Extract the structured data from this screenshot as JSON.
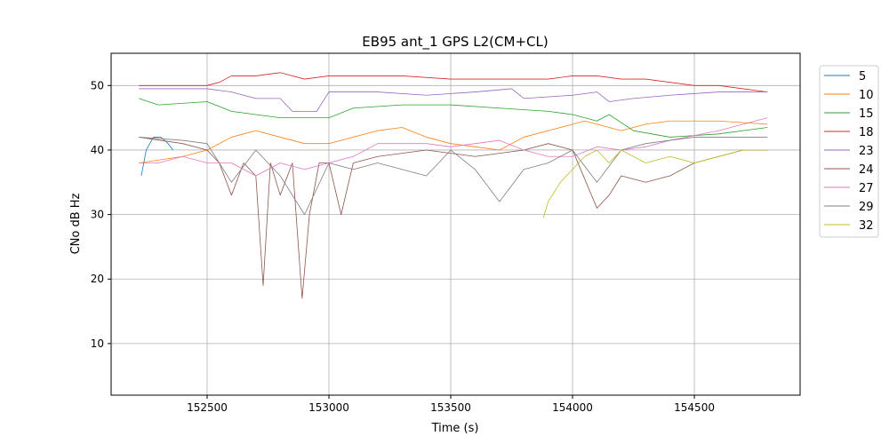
{
  "chart_data": {
    "type": "line",
    "title": "EB95 ant_1 GPS L2(CM+CL)",
    "xlabel": "Time (s)",
    "ylabel": "CNo dB Hz",
    "xlim": [
      152106,
      154934
    ],
    "ylim": [
      2,
      55
    ],
    "xticks": [
      152500,
      153000,
      153500,
      154000,
      154500
    ],
    "yticks": [
      10,
      20,
      30,
      40,
      50
    ],
    "grid": true,
    "legend_position": "outside-right-top",
    "series": [
      {
        "name": "5",
        "color": "#1f77b4",
        "points": [
          [
            152230,
            36
          ],
          [
            152250,
            40
          ],
          [
            152280,
            42
          ],
          [
            152310,
            42
          ],
          [
            152340,
            41
          ],
          [
            152360,
            40
          ]
        ]
      },
      {
        "name": "10",
        "color": "#ff7f0e",
        "points": [
          [
            152220,
            38
          ],
          [
            152400,
            39
          ],
          [
            152500,
            40
          ],
          [
            152600,
            42
          ],
          [
            152700,
            43
          ],
          [
            152800,
            42
          ],
          [
            152900,
            41
          ],
          [
            153000,
            41
          ],
          [
            153200,
            43
          ],
          [
            153300,
            43.5
          ],
          [
            153400,
            42
          ],
          [
            153500,
            41
          ],
          [
            153600,
            40.5
          ],
          [
            153700,
            40
          ],
          [
            153800,
            42
          ],
          [
            153900,
            43
          ],
          [
            154000,
            44
          ],
          [
            154050,
            44.5
          ],
          [
            154200,
            43
          ],
          [
            154300,
            44
          ],
          [
            154400,
            44.5
          ],
          [
            154600,
            44.5
          ],
          [
            154800,
            44
          ]
        ]
      },
      {
        "name": "15",
        "color": "#2ca02c",
        "points": [
          [
            152220,
            48
          ],
          [
            152300,
            47
          ],
          [
            152500,
            47.5
          ],
          [
            152600,
            46
          ],
          [
            152700,
            45.5
          ],
          [
            152800,
            45
          ],
          [
            153000,
            45
          ],
          [
            153100,
            46.5
          ],
          [
            153300,
            47
          ],
          [
            153500,
            47
          ],
          [
            153700,
            46.5
          ],
          [
            153900,
            46
          ],
          [
            154000,
            45.5
          ],
          [
            154100,
            44.5
          ],
          [
            154150,
            45.5
          ],
          [
            154250,
            43
          ],
          [
            154400,
            42
          ],
          [
            154600,
            42.5
          ],
          [
            154800,
            43.5
          ]
        ]
      },
      {
        "name": "18",
        "color": "#d62728",
        "points": [
          [
            152220,
            50
          ],
          [
            152400,
            50
          ],
          [
            152500,
            50
          ],
          [
            152550,
            50.5
          ],
          [
            152600,
            51.5
          ],
          [
            152700,
            51.5
          ],
          [
            152800,
            52
          ],
          [
            152900,
            51
          ],
          [
            153000,
            51.5
          ],
          [
            153100,
            51.5
          ],
          [
            153300,
            51.5
          ],
          [
            153500,
            51
          ],
          [
            153700,
            51
          ],
          [
            153900,
            51
          ],
          [
            154000,
            51.5
          ],
          [
            154100,
            51.5
          ],
          [
            154200,
            51
          ],
          [
            154300,
            51
          ],
          [
            154400,
            50.5
          ],
          [
            154500,
            50
          ],
          [
            154600,
            50
          ],
          [
            154700,
            49.5
          ],
          [
            154800,
            49
          ]
        ]
      },
      {
        "name": "23",
        "color": "#9467bd",
        "points": [
          [
            152220,
            49.5
          ],
          [
            152400,
            49.5
          ],
          [
            152500,
            49.5
          ],
          [
            152600,
            49
          ],
          [
            152700,
            48
          ],
          [
            152800,
            48
          ],
          [
            152850,
            46
          ],
          [
            152950,
            46
          ],
          [
            153000,
            49
          ],
          [
            153200,
            49
          ],
          [
            153400,
            48.5
          ],
          [
            153600,
            49
          ],
          [
            153750,
            49.5
          ],
          [
            153800,
            48
          ],
          [
            154000,
            48.5
          ],
          [
            154100,
            49
          ],
          [
            154150,
            47.5
          ],
          [
            154250,
            48
          ],
          [
            154400,
            48.5
          ],
          [
            154600,
            49
          ],
          [
            154800,
            49
          ]
        ]
      },
      {
        "name": "24",
        "color": "#8c564b",
        "points": [
          [
            152220,
            42
          ],
          [
            152400,
            41
          ],
          [
            152500,
            40
          ],
          [
            152550,
            38
          ],
          [
            152600,
            33
          ],
          [
            152650,
            38
          ],
          [
            152700,
            36
          ],
          [
            152730,
            19
          ],
          [
            152760,
            38
          ],
          [
            152800,
            33
          ],
          [
            152850,
            38
          ],
          [
            152890,
            17
          ],
          [
            152920,
            30
          ],
          [
            152960,
            38
          ],
          [
            153000,
            38
          ],
          [
            153050,
            30
          ],
          [
            153100,
            38
          ],
          [
            153200,
            39
          ],
          [
            153400,
            40
          ],
          [
            153600,
            39
          ],
          [
            153800,
            40
          ],
          [
            153900,
            41
          ],
          [
            154000,
            40
          ],
          [
            154100,
            31
          ],
          [
            154150,
            33
          ],
          [
            154200,
            36
          ],
          [
            154300,
            35
          ],
          [
            154400,
            36
          ],
          [
            154500,
            38
          ],
          [
            154600,
            39
          ],
          [
            154700,
            40
          ],
          [
            154800,
            40
          ]
        ]
      },
      {
        "name": "27",
        "color": "#e377c2",
        "points": [
          [
            152220,
            38
          ],
          [
            152300,
            38
          ],
          [
            152400,
            39
          ],
          [
            152500,
            38
          ],
          [
            152600,
            38
          ],
          [
            152700,
            36
          ],
          [
            152800,
            38
          ],
          [
            152900,
            37
          ],
          [
            153000,
            38
          ],
          [
            153100,
            39
          ],
          [
            153200,
            41
          ],
          [
            153300,
            41
          ],
          [
            153400,
            41
          ],
          [
            153500,
            40.5
          ],
          [
            153600,
            41
          ],
          [
            153700,
            41.5
          ],
          [
            153800,
            40
          ],
          [
            153900,
            39
          ],
          [
            154000,
            39
          ],
          [
            154100,
            40.5
          ],
          [
            154200,
            40
          ],
          [
            154300,
            40.5
          ],
          [
            154400,
            41.5
          ],
          [
            154600,
            43
          ],
          [
            154800,
            45
          ]
        ]
      },
      {
        "name": "29",
        "color": "#7f7f7f",
        "points": [
          [
            152220,
            42
          ],
          [
            152400,
            41.5
          ],
          [
            152500,
            41
          ],
          [
            152600,
            35
          ],
          [
            152700,
            40
          ],
          [
            152800,
            36
          ],
          [
            152900,
            30
          ],
          [
            153000,
            38
          ],
          [
            153100,
            37
          ],
          [
            153200,
            38
          ],
          [
            153300,
            37
          ],
          [
            153400,
            36
          ],
          [
            153500,
            40
          ],
          [
            153600,
            37
          ],
          [
            153700,
            32
          ],
          [
            153800,
            37
          ],
          [
            153900,
            38
          ],
          [
            154000,
            40
          ],
          [
            154100,
            35
          ],
          [
            154200,
            40
          ],
          [
            154300,
            41
          ],
          [
            154500,
            42
          ],
          [
            154800,
            42
          ]
        ]
      },
      {
        "name": "32",
        "color": "#bcbd22",
        "points": [
          [
            153880,
            29.5
          ],
          [
            153900,
            32
          ],
          [
            153950,
            35
          ],
          [
            154000,
            37
          ],
          [
            154050,
            39
          ],
          [
            154100,
            40
          ],
          [
            154150,
            38
          ],
          [
            154200,
            40
          ],
          [
            154300,
            38
          ],
          [
            154400,
            39
          ],
          [
            154500,
            38
          ],
          [
            154600,
            39
          ],
          [
            154700,
            40
          ],
          [
            154800,
            40
          ]
        ]
      }
    ]
  }
}
